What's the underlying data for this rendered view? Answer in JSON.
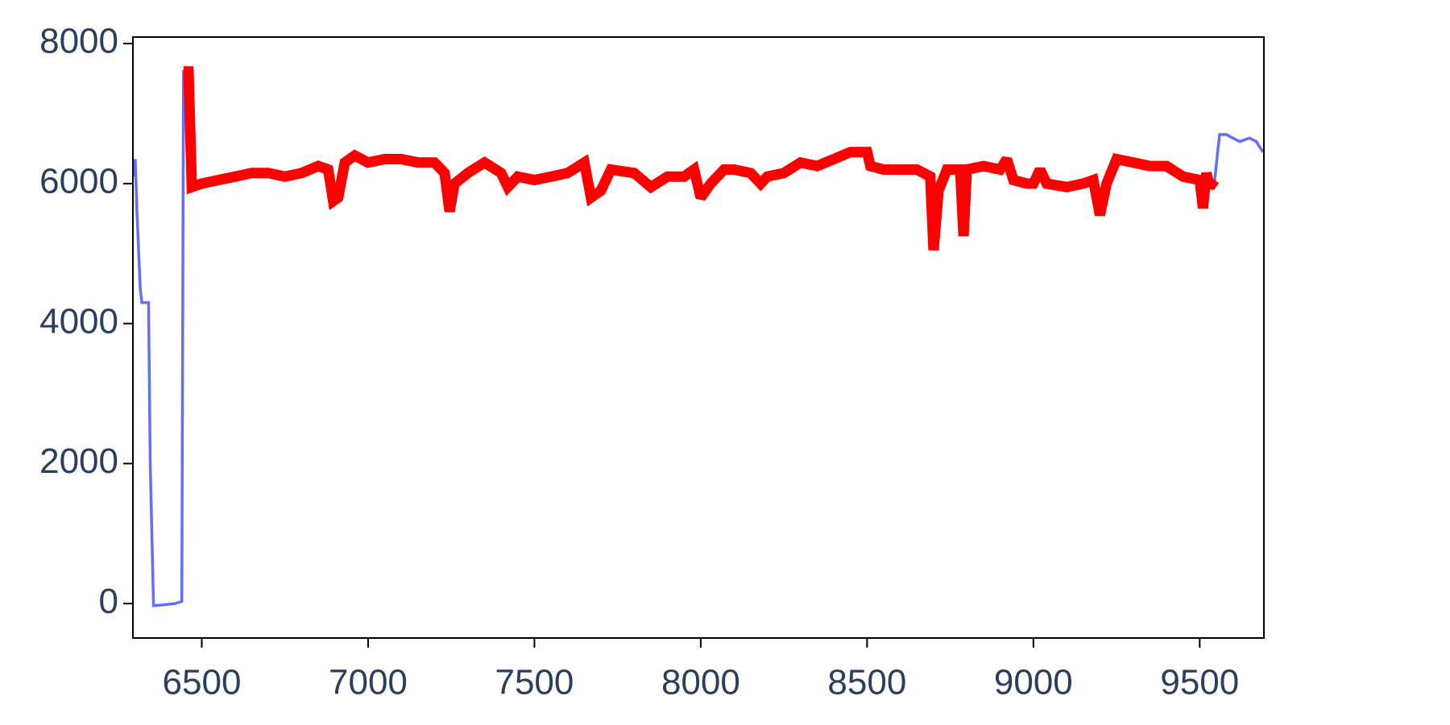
{
  "chart_data": {
    "type": "line",
    "x": [
      6295,
      6300,
      6305,
      6315,
      6320,
      6340,
      6345,
      6355,
      6380,
      6400,
      6420,
      6440,
      6445,
      6460,
      6470,
      6500,
      6550,
      6600,
      6650,
      6700,
      6750,
      6800,
      6850,
      6880,
      6895,
      6910,
      6930,
      6960,
      7000,
      7050,
      7100,
      7150,
      7200,
      7230,
      7245,
      7260,
      7300,
      7350,
      7400,
      7420,
      7450,
      7500,
      7550,
      7600,
      7650,
      7670,
      7700,
      7730,
      7800,
      7850,
      7900,
      7950,
      7980,
      8000,
      8030,
      8070,
      8100,
      8150,
      8180,
      8200,
      8250,
      8300,
      8350,
      8400,
      8450,
      8500,
      8510,
      8550,
      8600,
      8650,
      8690,
      8700,
      8715,
      8740,
      8780,
      8790,
      8800,
      8850,
      8900,
      8920,
      8940,
      8980,
      9000,
      9020,
      9040,
      9100,
      9150,
      9180,
      9200,
      9220,
      9250,
      9300,
      9350,
      9400,
      9450,
      9500,
      9510,
      9520,
      9530,
      9545,
      9555,
      9560,
      9580,
      9600,
      9620,
      9650,
      9670,
      9690
    ],
    "series": [
      {
        "color": "#636efa",
        "values": [
          6100,
          6350,
          5600,
          4500,
          4300,
          4300,
          2000,
          -30,
          -20,
          -10,
          0,
          30,
          7600,
          7600,
          5950,
          6000,
          6050,
          6100,
          6150,
          6150,
          6100,
          6150,
          6250,
          6200,
          5750,
          5800,
          6300,
          6400,
          6300,
          6350,
          6350,
          6300,
          6300,
          6150,
          5600,
          6000,
          6150,
          6300,
          6150,
          5950,
          6100,
          6050,
          6100,
          6150,
          6300,
          5800,
          5900,
          6200,
          6150,
          5950,
          6100,
          6100,
          6200,
          5800,
          6000,
          6200,
          6200,
          6150,
          6000,
          6100,
          6150,
          6300,
          6250,
          6350,
          6450,
          6450,
          6250,
          6200,
          6200,
          6200,
          6100,
          5050,
          5900,
          6200,
          6200,
          5250,
          6200,
          6250,
          6200,
          6350,
          6050,
          6000,
          6000,
          6200,
          6000,
          5950,
          6000,
          6050,
          5550,
          6000,
          6350,
          6300,
          6250,
          6250,
          6100,
          6050,
          5650,
          6150,
          5950,
          6050,
          6500,
          6700,
          6700,
          6650,
          6600,
          6650,
          6600,
          6450
        ]
      },
      {
        "color": "#ff0000",
        "values": [
          null,
          null,
          null,
          null,
          null,
          null,
          null,
          null,
          null,
          null,
          null,
          null,
          7600,
          7600,
          5950,
          6000,
          6050,
          6100,
          6150,
          6150,
          6100,
          6150,
          6250,
          6200,
          5750,
          5800,
          6300,
          6400,
          6300,
          6350,
          6350,
          6300,
          6300,
          6150,
          5600,
          6000,
          6150,
          6300,
          6150,
          5950,
          6100,
          6050,
          6100,
          6150,
          6300,
          5800,
          5900,
          6200,
          6150,
          5950,
          6100,
          6100,
          6200,
          5800,
          6000,
          6200,
          6200,
          6150,
          6000,
          6100,
          6150,
          6300,
          6250,
          6350,
          6450,
          6450,
          6250,
          6200,
          6200,
          6200,
          6100,
          5050,
          5900,
          6200,
          6200,
          5250,
          6200,
          6250,
          6200,
          6350,
          6050,
          6000,
          6000,
          6200,
          6000,
          5950,
          6000,
          6050,
          5550,
          6000,
          6350,
          6300,
          6250,
          6250,
          6100,
          6050,
          5650,
          6150,
          5950,
          6050,
          null,
          null,
          null,
          null,
          null,
          null,
          null,
          null
        ]
      }
    ],
    "xlim": [
      6293,
      9693
    ],
    "ylim": [
      -492,
      8093
    ],
    "xticks": [
      6500,
      7000,
      7500,
      8000,
      8500,
      9000,
      9500
    ],
    "yticks": [
      0,
      2000,
      4000,
      6000,
      8000
    ]
  }
}
